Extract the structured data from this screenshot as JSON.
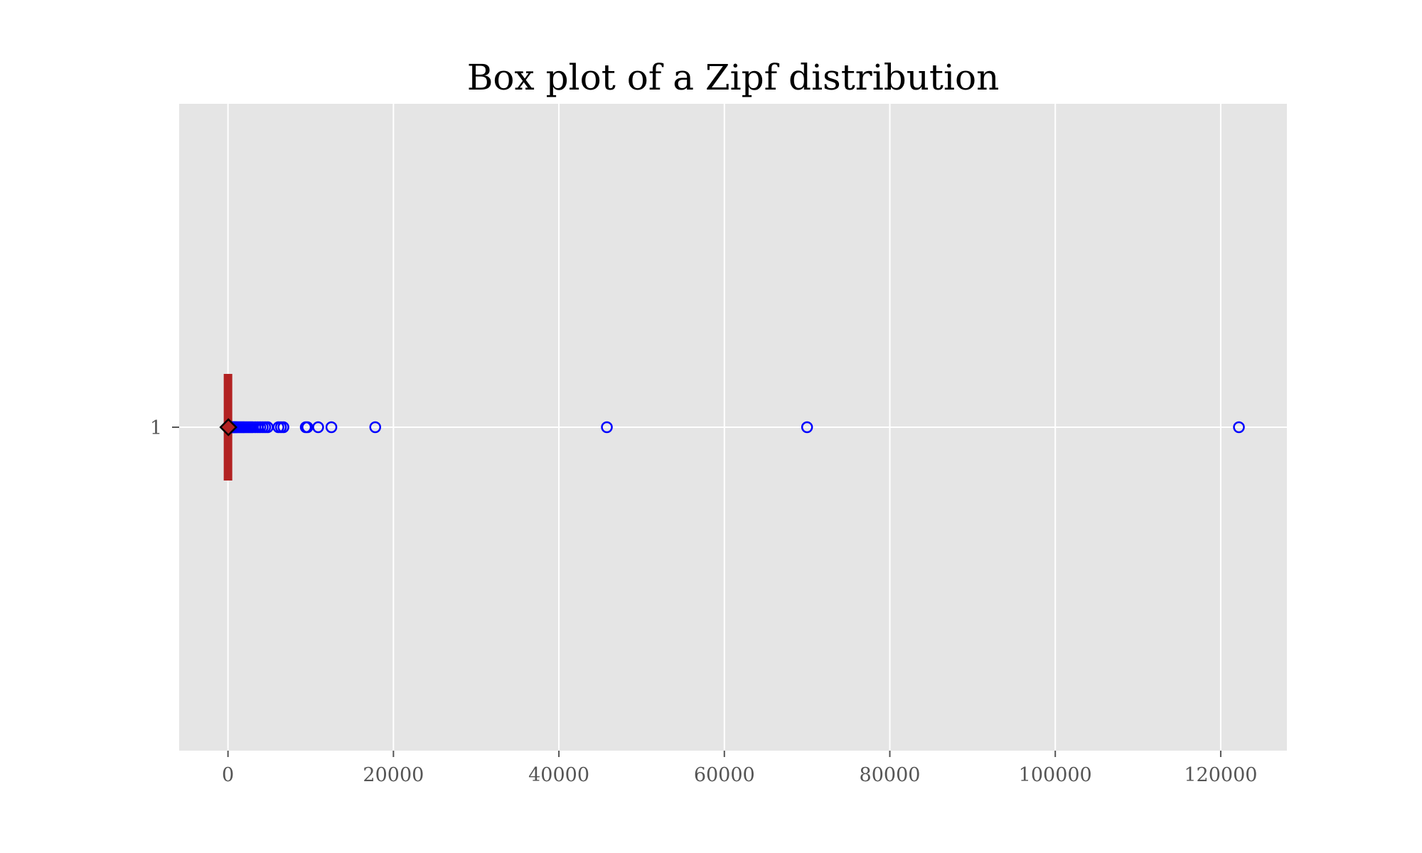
{
  "chart_data": {
    "type": "boxplot",
    "orientation": "horizontal",
    "title": "Box plot of a Zipf distribution",
    "xlabel": "",
    "ylabel": "",
    "xlim": [
      -5900,
      128000
    ],
    "x_ticks": [
      0,
      20000,
      40000,
      60000,
      80000,
      100000,
      120000
    ],
    "x_tick_labels": [
      "0",
      "20000",
      "40000",
      "60000",
      "80000",
      "100000",
      "120000"
    ],
    "y_ticks": [
      1
    ],
    "y_tick_labels": [
      "1"
    ],
    "grid": true,
    "series": [
      {
        "position": 1,
        "whisker_low": 1,
        "q1": 1,
        "median": 1,
        "q3": 2,
        "whisker_high": 4,
        "mean": 48,
        "outliers": [
          6,
          10,
          20,
          40,
          60,
          90,
          120,
          160,
          200,
          260,
          320,
          400,
          480,
          560,
          640,
          720,
          800,
          900,
          1000,
          1100,
          1250,
          1400,
          1550,
          1700,
          1850,
          2000,
          2200,
          2400,
          2600,
          2800,
          3000,
          3300,
          3600,
          3900,
          4200,
          4500,
          4800,
          6100,
          6400,
          6700,
          9400,
          9600,
          10900,
          12500,
          17800,
          45800,
          70000,
          122200
        ]
      }
    ],
    "colors": {
      "background": "#e5e5e5",
      "grid": "#ffffff",
      "box": "#b22222",
      "outlier_edge": "#0000ff",
      "mean_face": "#b22222",
      "mean_edge": "#000000"
    }
  }
}
